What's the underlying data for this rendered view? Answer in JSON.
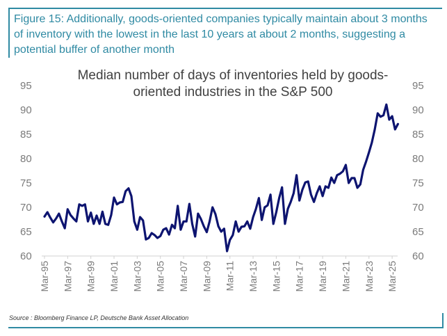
{
  "caption": "Figure 15: Additionally, goods-oriented companies typically maintain about 3 months of inventory with the lowest in the last 10 years at about 2 months, suggesting a potential buffer of another month",
  "source": "Source : Bloomberg Finance LP, Deutsche Bank Asset Allocation",
  "colors": {
    "line": "#0d1470",
    "frame": "#2f8aa3",
    "axis_text": "#7a7a7a",
    "title": "#404040"
  },
  "chart_data": {
    "type": "line",
    "title": "Median number of days of inventories held by goods-oriented industries in the S&P 500",
    "title_lines": [
      "Median number of days of inventories held by goods-",
      "oriented industries in the S&P 500"
    ],
    "xlabel": "",
    "ylabel": "",
    "ylim": [
      60,
      95
    ],
    "yticks": [
      60,
      65,
      70,
      75,
      80,
      85,
      90,
      95
    ],
    "ytick_labels": [
      "60",
      "65",
      "70",
      "75",
      "80",
      "85",
      "90",
      "95"
    ],
    "secondary_y_axis": true,
    "grid": false,
    "x_start": "Mar-95",
    "frequency": "quarterly",
    "xtick_labels": [
      "Mar-95",
      "Mar-97",
      "Mar-99",
      "Mar-01",
      "Mar-03",
      "Mar-05",
      "Mar-07",
      "Mar-09",
      "Mar-11",
      "Mar-13",
      "Mar-15",
      "Mar-17",
      "Mar-19",
      "Mar-21",
      "Mar-23",
      "Mar-25"
    ],
    "series": [
      {
        "name": "Median days of inventories",
        "values": [
          68.1,
          69.0,
          67.9,
          66.9,
          67.7,
          68.7,
          67.1,
          65.7,
          69.6,
          68.4,
          67.7,
          67.1,
          70.6,
          70.3,
          70.6,
          67.1,
          68.9,
          66.6,
          68.3,
          66.6,
          69.1,
          66.6,
          66.4,
          68.4,
          72.0,
          70.6,
          71.0,
          71.1,
          73.3,
          73.9,
          72.3,
          67.1,
          65.4,
          68.0,
          67.3,
          63.4,
          63.7,
          64.7,
          64.3,
          63.7,
          64.1,
          65.4,
          65.7,
          64.4,
          66.4,
          65.7,
          70.3,
          65.4,
          67.1,
          67.1,
          70.7,
          66.6,
          64.0,
          68.7,
          67.6,
          66.1,
          64.9,
          67.1,
          70.0,
          68.6,
          66.1,
          65.0,
          65.6,
          61.0,
          63.3,
          64.3,
          67.1,
          65.0,
          66.0,
          66.1,
          67.1,
          65.6,
          68.0,
          69.7,
          71.9,
          67.4,
          70.0,
          70.4,
          72.6,
          66.6,
          69.0,
          71.9,
          74.1,
          66.6,
          69.7,
          71.1,
          72.9,
          76.6,
          71.4,
          73.6,
          75.1,
          75.3,
          72.6,
          71.1,
          72.9,
          74.3,
          72.3,
          74.3,
          74.0,
          76.1,
          75.0,
          76.6,
          76.9,
          77.4,
          78.7,
          75.0,
          76.0,
          76.0,
          74.0,
          74.7,
          77.7,
          79.4,
          81.3,
          83.3,
          86.0,
          89.3,
          88.6,
          88.9,
          91.1,
          88.0,
          88.7,
          86.0,
          87.1
        ]
      }
    ]
  }
}
